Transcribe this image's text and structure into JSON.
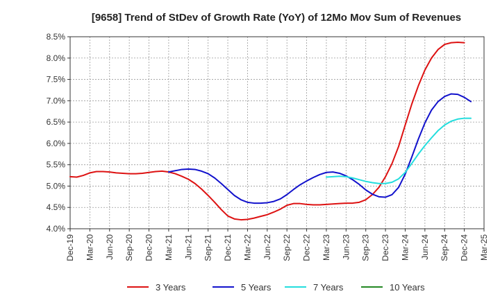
{
  "chart_data": {
    "type": "line",
    "title": "[9658]  Trend of StDev of Growth Rate (YoY) of 12Mo Mov Sum of Revenues",
    "xlabel": "",
    "ylabel": "",
    "ylim": [
      4.0,
      8.5
    ],
    "y_ticks": [
      "4.0%",
      "4.5%",
      "5.0%",
      "5.5%",
      "6.0%",
      "6.5%",
      "7.0%",
      "7.5%",
      "8.0%",
      "8.5%"
    ],
    "x_ticks": [
      "Dec-19",
      "Mar-20",
      "Jun-20",
      "Sep-20",
      "Dec-20",
      "Mar-21",
      "Jun-21",
      "Sep-21",
      "Dec-21",
      "Mar-22",
      "Jun-22",
      "Sep-22",
      "Dec-22",
      "Mar-23",
      "Jun-23",
      "Sep-23",
      "Dec-23",
      "Mar-24",
      "Jun-24",
      "Sep-24",
      "Dec-24",
      "Mar-25"
    ],
    "grid": true,
    "legend_position": "bottom",
    "series": [
      {
        "name": "3 Years",
        "color": "#dd1111",
        "start": "Dec-19",
        "values": [
          5.22,
          5.21,
          5.25,
          5.31,
          5.34,
          5.34,
          5.33,
          5.31,
          5.3,
          5.29,
          5.29,
          5.3,
          5.32,
          5.34,
          5.35,
          5.33,
          5.29,
          5.23,
          5.16,
          5.06,
          4.93,
          4.78,
          4.62,
          4.45,
          4.3,
          4.23,
          4.21,
          4.22,
          4.25,
          4.29,
          4.33,
          4.39,
          4.46,
          4.55,
          4.59,
          4.59,
          4.57,
          4.56,
          4.56,
          4.57,
          4.58,
          4.59,
          4.6,
          4.6,
          4.62,
          4.68,
          4.8,
          4.97,
          5.22,
          5.53,
          5.93,
          6.43,
          6.92,
          7.35,
          7.72,
          8.0,
          8.2,
          8.32,
          8.36,
          8.37,
          8.36
        ]
      },
      {
        "name": "5 Years",
        "color": "#1111cc",
        "start": "Mar-21",
        "values": [
          5.33,
          5.36,
          5.39,
          5.4,
          5.39,
          5.35,
          5.29,
          5.19,
          5.06,
          4.92,
          4.78,
          4.68,
          4.62,
          4.6,
          4.6,
          4.61,
          4.64,
          4.7,
          4.8,
          4.92,
          5.03,
          5.12,
          5.2,
          5.27,
          5.32,
          5.33,
          5.3,
          5.24,
          5.15,
          5.04,
          4.91,
          4.81,
          4.75,
          4.74,
          4.8,
          4.97,
          5.28,
          5.68,
          6.1,
          6.48,
          6.78,
          6.98,
          7.1,
          7.16,
          7.15,
          7.08,
          6.98
        ]
      },
      {
        "name": "7 Years",
        "color": "#22dddd",
        "start": "Mar-23",
        "values": [
          5.21,
          5.22,
          5.23,
          5.22,
          5.19,
          5.15,
          5.11,
          5.08,
          5.06,
          5.06,
          5.09,
          5.17,
          5.32,
          5.53,
          5.75,
          5.95,
          6.13,
          6.3,
          6.43,
          6.52,
          6.57,
          6.59,
          6.59
        ]
      },
      {
        "name": "10 Years",
        "color": "#228822",
        "start": "",
        "values": []
      }
    ]
  }
}
